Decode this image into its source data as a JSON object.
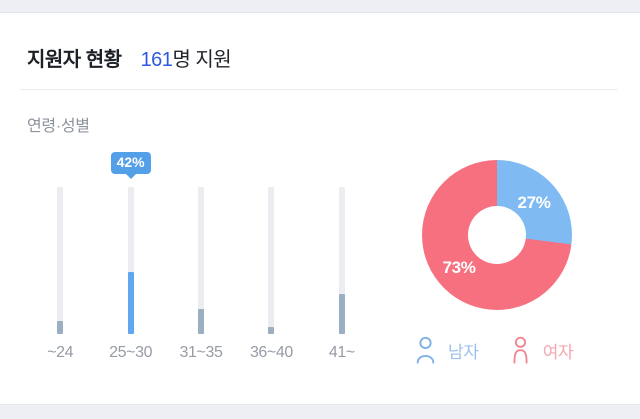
{
  "header": {
    "title": "지원자 현황",
    "applicant_count": "161",
    "count_suffix": "명 지원"
  },
  "section": {
    "label": "연령·성별"
  },
  "chart_data": [
    {
      "type": "bar",
      "title": "연령·성별 (age distribution)",
      "categories": [
        "~24",
        "25~30",
        "31~35",
        "36~40",
        "41~"
      ],
      "values": [
        9,
        42,
        17,
        5,
        27
      ],
      "unit": "%",
      "ylim": [
        0,
        100
      ],
      "highlight_index": 1,
      "highlight_label": "42%",
      "bar_color": "#9cafc2",
      "highlight_color": "#60a8ee",
      "track_color": "#ecedf1",
      "tooltip_color": "#54a0e8",
      "legend_position": "none",
      "grid": false
    },
    {
      "type": "pie",
      "donut": true,
      "title": "성별 (gender split)",
      "categories": [
        "남자",
        "여자"
      ],
      "values": [
        27,
        73
      ],
      "labels": [
        "27%",
        "73%"
      ],
      "colors": [
        "#7fbaf2",
        "#f7707f"
      ],
      "start_angle_deg": 0,
      "direction": "clockwise",
      "legend": [
        {
          "label": "남자",
          "icon": "male-person-icon",
          "color": "#7fb0e6"
        },
        {
          "label": "여자",
          "icon": "female-person-icon",
          "color": "#f28794"
        }
      ],
      "legend_position": "bottom"
    }
  ]
}
